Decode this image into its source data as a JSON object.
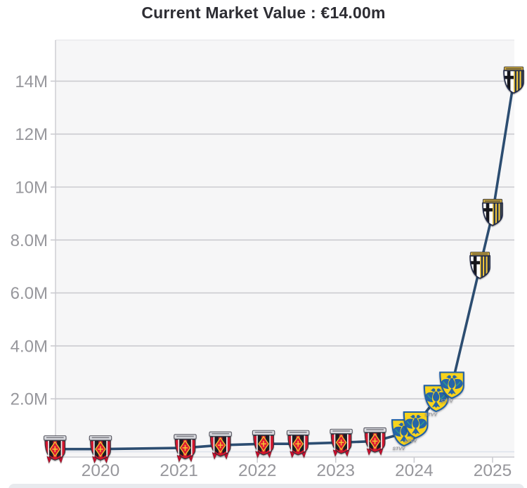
{
  "header": {
    "title": "Current Market Value : €14.00m"
  },
  "chart_data": {
    "type": "line",
    "title": "Current Market Value : €14.00m",
    "currency": "EUR",
    "value_unit": "millions EUR",
    "legend": "none",
    "grid": true,
    "x_axis": {
      "ticks": [
        {
          "label": "2020",
          "year": 2020
        },
        {
          "label": "2021",
          "year": 2021
        },
        {
          "label": "2022",
          "year": 2022
        },
        {
          "label": "2023",
          "year": 2023
        },
        {
          "label": "2024",
          "year": 2024
        },
        {
          "label": "2025",
          "year": 2025
        }
      ],
      "range": [
        2019.42,
        2025.28
      ]
    },
    "y_axis": {
      "ticks": [
        {
          "label": "2.0M",
          "value": 2
        },
        {
          "label": "4.0M",
          "value": 4
        },
        {
          "label": "6.0M",
          "value": 6
        },
        {
          "label": "8.0M",
          "value": 8
        },
        {
          "label": "10M",
          "value": 10
        },
        {
          "label": "12M",
          "value": 12
        },
        {
          "label": "14M",
          "value": 14
        }
      ],
      "range": [
        -0.2,
        15.6
      ]
    },
    "series": [
      {
        "name": "Market value",
        "color": "#2c4d71",
        "points": [
          {
            "x": 2019.42,
            "value_m": 0.1,
            "club": "urawa"
          },
          {
            "x": 2020.0,
            "value_m": 0.1,
            "club": "urawa"
          },
          {
            "x": 2021.08,
            "value_m": 0.15,
            "club": "urawa"
          },
          {
            "x": 2021.53,
            "value_m": 0.25,
            "club": "urawa"
          },
          {
            "x": 2022.08,
            "value_m": 0.3,
            "club": "urawa"
          },
          {
            "x": 2022.52,
            "value_m": 0.3,
            "club": "urawa"
          },
          {
            "x": 2023.07,
            "value_m": 0.35,
            "club": "urawa"
          },
          {
            "x": 2023.5,
            "value_m": 0.4,
            "club": "urawa"
          },
          {
            "x": 2023.87,
            "value_m": 0.7,
            "club": "stvv"
          },
          {
            "x": 2024.02,
            "value_m": 1.0,
            "club": "stvv"
          },
          {
            "x": 2024.28,
            "value_m": 2.0,
            "club": "stvv"
          },
          {
            "x": 2024.48,
            "value_m": 2.5,
            "club": "stvv"
          },
          {
            "x": 2024.84,
            "value_m": 7.0,
            "club": "parma"
          },
          {
            "x": 2025.0,
            "value_m": 9.0,
            "club": "parma"
          },
          {
            "x": 2025.27,
            "value_m": 14.0,
            "club": "parma"
          }
        ]
      }
    ],
    "marker_clubs": {
      "urawa": "Urawa Red Diamonds",
      "stvv": "Sint-Truidense VV",
      "parma": "Parma Calcio 1913"
    },
    "stvv_wordmark": "STVV",
    "colors": {
      "line": "#2c4d71",
      "plot_bg": "#f6f6f7",
      "grid": "#cbcbd0",
      "zero_line": "#dde2eb",
      "axis_text": "#97979c",
      "title_text": "#2d2d33",
      "bottom_band": "#e8eaee"
    }
  }
}
